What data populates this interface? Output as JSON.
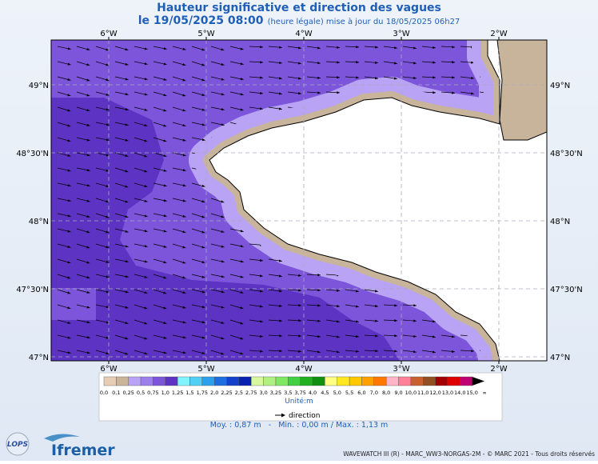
{
  "header": {
    "title": "Hauteur significative et direction des vagues",
    "date": "le 19/05/2025 08:00",
    "note": "(heure légale) mise à jour du 18/05/2025 06h27"
  },
  "map": {
    "longitudes": [
      "6°W",
      "5°W",
      "4°W",
      "3°W",
      "2°W"
    ],
    "latitudes": [
      "49°N",
      "48°30'N",
      "48°N",
      "47°30'N",
      "47°N"
    ]
  },
  "legend": {
    "labels": [
      "0,0",
      "0,1",
      "0,25",
      "0,5",
      "0,75",
      "1,0",
      "1,25",
      "1,5",
      "1,75",
      "2,0",
      "2,25",
      "2,5",
      "2,75",
      "3,0",
      "3,25",
      "3,5",
      "3,75",
      "4,0",
      "4,5",
      "5,0",
      "5,5",
      "6,0",
      "7,0",
      "8,0",
      "9,0",
      "10,0",
      "11,0",
      "12,0",
      "13,0",
      "14,0",
      "15,0",
      "∞"
    ],
    "unit": "Unité:m",
    "direction": "direction"
  },
  "stats": "Moy. : 0,87 m   -   Min. : 0,00 m / Max. : 1,13 m",
  "footer": {
    "lops": "LOPS",
    "ifremer": "Ifremer",
    "credit": "WAVEWATCH III (R) - MARC_WW3-NORGAS-2M - © MARC 2021 - Tous droits réservés"
  }
}
